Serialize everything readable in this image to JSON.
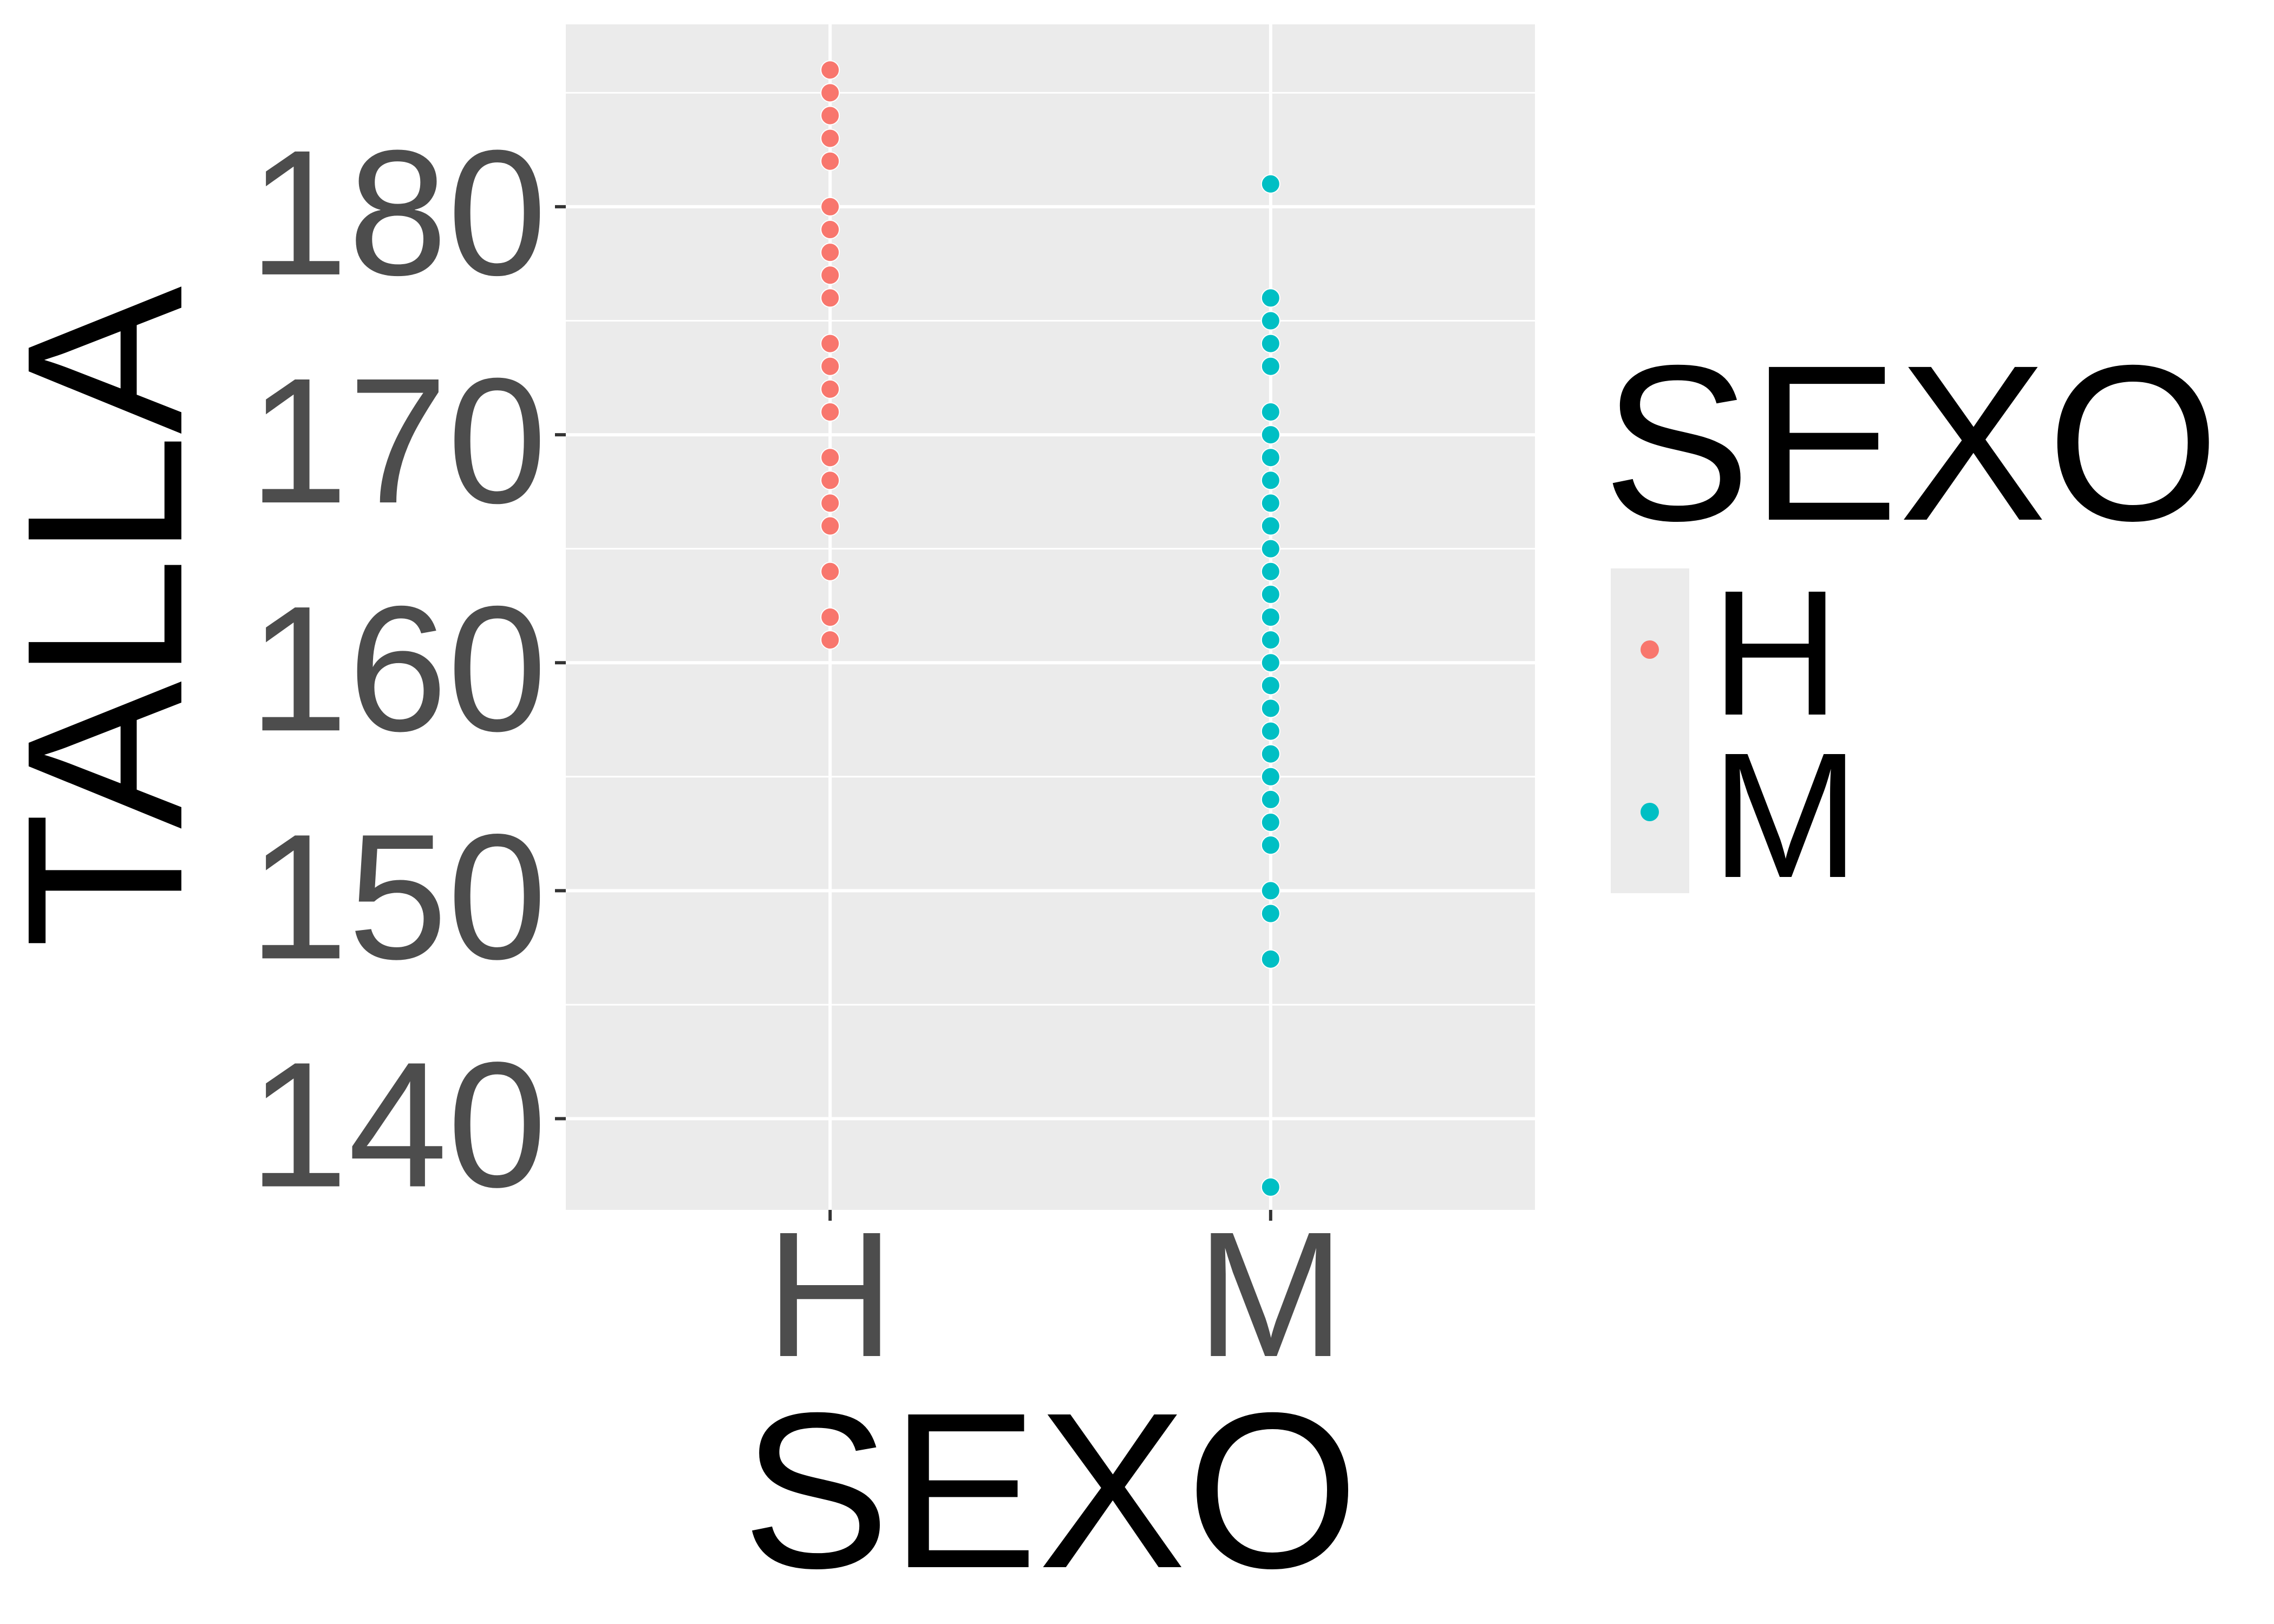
{
  "chart_data": {
    "type": "scatter",
    "xlabel": "SEXO",
    "ylabel": "TALLA",
    "categories": [
      "H",
      "M"
    ],
    "ylim": [
      136,
      188
    ],
    "yticks": [
      140,
      150,
      160,
      170,
      180
    ],
    "ytick_labels": [
      "140",
      "150",
      "160",
      "170",
      "180"
    ],
    "grid": true,
    "legend": {
      "title": "SEXO",
      "position": "right",
      "entries": [
        "H",
        "M"
      ]
    },
    "colors": {
      "H": "#F8766D",
      "M": "#00BFC4",
      "panel": "#EBEBEB",
      "grid": "#FFFFFF"
    },
    "series": [
      {
        "name": "H",
        "category": "H",
        "values": [
          186,
          185,
          184,
          183,
          182,
          180,
          179,
          178,
          177,
          176,
          174,
          173,
          172,
          171,
          169,
          168,
          167,
          166,
          164,
          162,
          161
        ]
      },
      {
        "name": "M",
        "category": "M",
        "values": [
          181,
          176,
          175,
          174,
          173,
          171,
          170,
          169,
          168,
          167,
          166,
          165,
          164,
          163,
          162,
          161,
          160,
          159,
          158,
          157,
          156,
          155,
          154,
          153,
          152,
          150,
          149,
          147,
          137
        ]
      }
    ]
  }
}
